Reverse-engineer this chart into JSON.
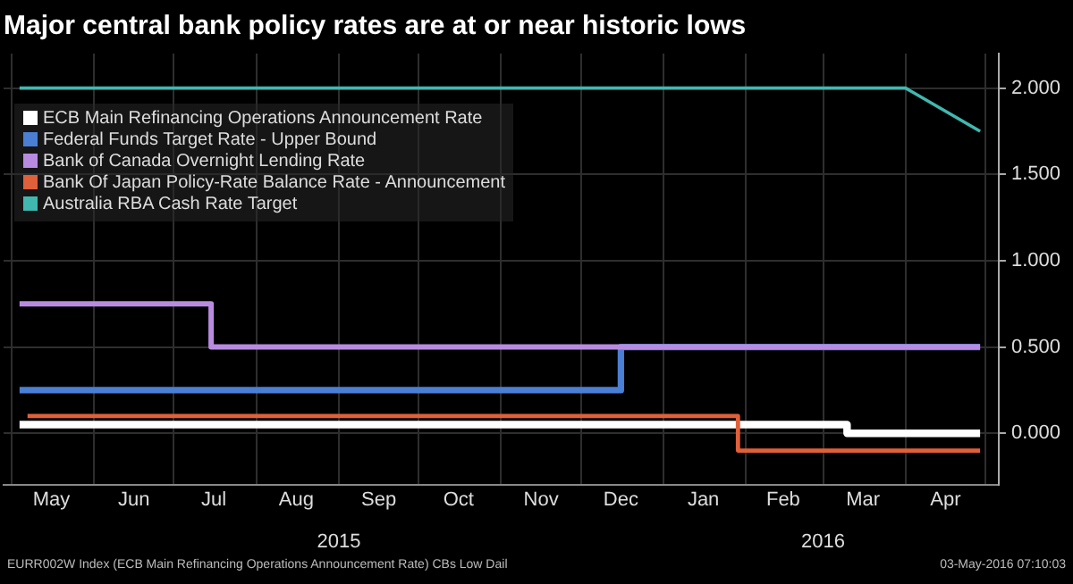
{
  "chart_data": {
    "type": "step",
    "title": "Major central bank policy rates are at or near historic lows",
    "series": [
      {
        "name": "ECB Main Refinancing Operations Announcement Rate",
        "color": "#ffffff",
        "x": [
          "2015-05-04",
          "2016-03-10",
          "2016-04-29"
        ],
        "values": [
          0.05,
          0,
          0
        ]
      },
      {
        "name": "Federal Funds Target Rate - Upper Bound",
        "color": "#4a7fd4",
        "x": [
          "2015-05-04",
          "2015-12-16",
          "2016-04-29"
        ],
        "values": [
          0.25,
          0.5,
          0.5
        ]
      },
      {
        "name": "Bank of Canada Overnight Lending Rate",
        "color": "#b98be0",
        "x": [
          "2015-05-04",
          "2015-07-15",
          "2016-04-29"
        ],
        "values": [
          0.75,
          0.5,
          0.5
        ]
      },
      {
        "name": "Bank Of Japan Policy-Rate Balance Rate - Announcement",
        "color": "#e0603a",
        "x": [
          "2015-05-07",
          "2016-01-29",
          "2016-04-29"
        ],
        "values": [
          0.1,
          -0.1,
          -0.1
        ]
      },
      {
        "name": "Australia RBA Cash Rate Target",
        "color": "#40b8b0",
        "type": "line",
        "x": [
          "2015-05-04",
          "2016-04-01",
          "2016-04-29"
        ],
        "values": [
          2,
          2,
          1.75
        ]
      }
    ],
    "xlim": [
      "2015-04-28",
      "2016-05-06"
    ],
    "xticks": [
      {
        "value": "2015-05-01",
        "label": null
      },
      {
        "value": "2015-05-16",
        "label": "May"
      },
      {
        "value": "2015-06-01",
        "label": null
      },
      {
        "value": "2015-06-16",
        "label": "Jun"
      },
      {
        "value": "2015-07-01",
        "label": null
      },
      {
        "value": "2015-07-16",
        "label": "Jul"
      },
      {
        "value": "2015-08-01",
        "label": null
      },
      {
        "value": "2015-08-16",
        "label": "Aug"
      },
      {
        "value": "2015-09-01",
        "label": null
      },
      {
        "value": "2015-09-16",
        "label": "Sep"
      },
      {
        "value": "2015-10-01",
        "label": null
      },
      {
        "value": "2015-10-16",
        "label": "Oct"
      },
      {
        "value": "2015-11-01",
        "label": null
      },
      {
        "value": "2015-11-16",
        "label": "Nov"
      },
      {
        "value": "2015-12-01",
        "label": null
      },
      {
        "value": "2015-12-16",
        "label": "Dec"
      },
      {
        "value": "2016-01-01",
        "label": null
      },
      {
        "value": "2016-01-16",
        "label": "Jan"
      },
      {
        "value": "2016-02-01",
        "label": null
      },
      {
        "value": "2016-02-15",
        "label": "Feb"
      },
      {
        "value": "2016-03-01",
        "label": null
      },
      {
        "value": "2016-03-16",
        "label": "Mar"
      },
      {
        "value": "2016-04-01",
        "label": null
      },
      {
        "value": "2016-04-16",
        "label": "Apr"
      },
      {
        "value": "2016-05-01",
        "label": null
      }
    ],
    "x2lim": [
      "2015-04-28",
      "2016-05-06"
    ],
    "x2ticks": [
      {
        "value": "2015-09-01",
        "label": "2015"
      },
      {
        "value": "2016-03-01",
        "label": "2016"
      }
    ],
    "ylim": [
      -0.3,
      2.2
    ],
    "yticks": [
      {
        "value": 0,
        "label": "0.000"
      },
      {
        "value": 0.5,
        "label": "0.500"
      },
      {
        "value": 1,
        "label": "1.000"
      },
      {
        "value": 1.5,
        "label": "1.500"
      },
      {
        "value": 2,
        "label": "2.000"
      }
    ],
    "grid": true,
    "legend": "top left",
    "marker": "none",
    "line_style": "solid",
    "annotations": [
      "EURR002W Index (ECB Main Refinancing Operations Announcement Rate) CBs Low  Dail",
      "03-May-2016 07:10:03"
    ]
  }
}
